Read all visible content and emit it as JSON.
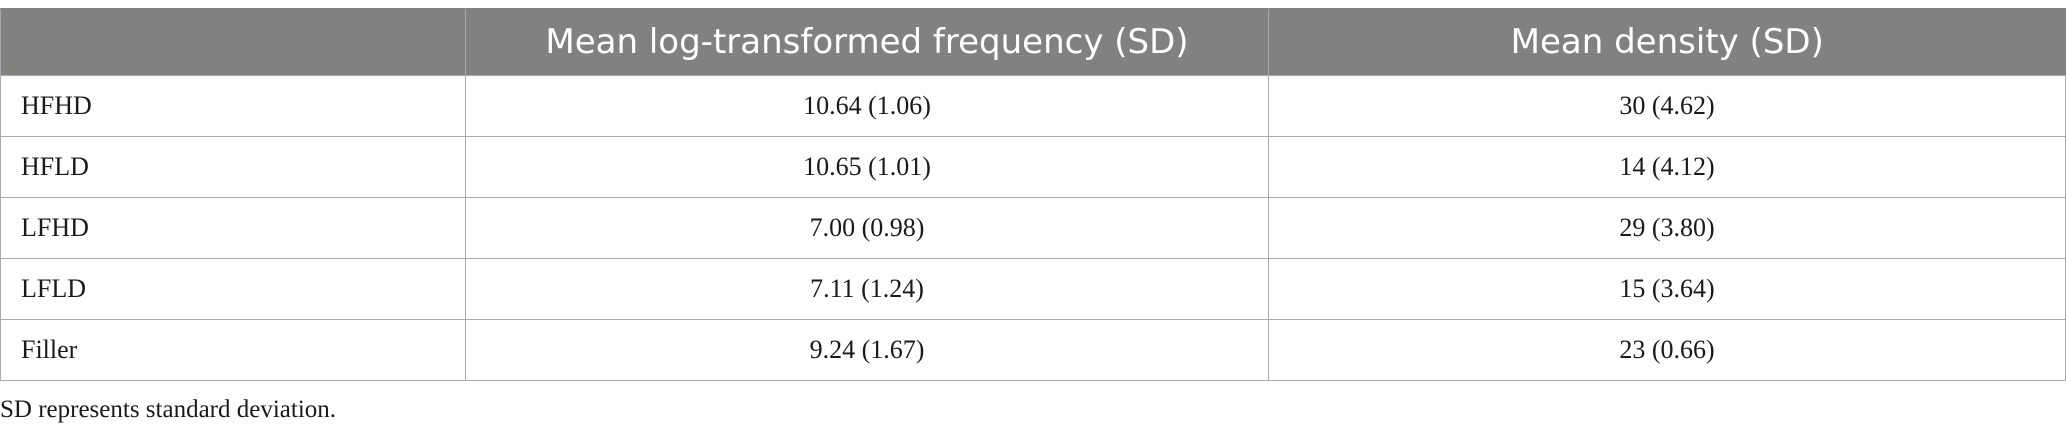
{
  "table": {
    "headers": [
      "",
      "Mean log-transformed frequency (SD)",
      "Mean density (SD)"
    ],
    "rows": [
      [
        "HFHD",
        "10.64 (1.06)",
        "30 (4.62)"
      ],
      [
        "HFLD",
        "10.65 (1.01)",
        "14 (4.12)"
      ],
      [
        "LFHD",
        "7.00 (0.98)",
        "29 (3.80)"
      ],
      [
        "LFLD",
        "7.11 (1.24)",
        "15 (3.64)"
      ],
      [
        "Filler",
        "9.24 (1.67)",
        "23 (0.66)"
      ]
    ]
  },
  "footnote": "SD represents standard deviation.",
  "colors": {
    "header_bg": "#818280",
    "header_text": "#ffffff",
    "border": "#a9a9a9"
  }
}
